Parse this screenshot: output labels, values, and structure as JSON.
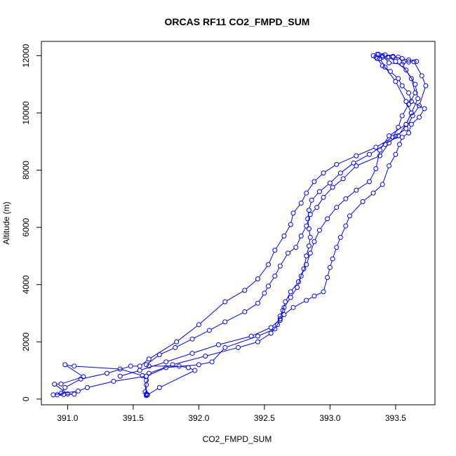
{
  "chart_data": {
    "type": "line",
    "title": "ORCAS RF11 CO2_FMPD_SUM",
    "xlabel": "CO2_FMPD_SUM",
    "ylabel": "Altitude (m)",
    "xlim": [
      390.8,
      393.8
    ],
    "ylim": [
      -200,
      12500
    ],
    "x_ticks": [
      391.0,
      391.5,
      392.0,
      392.5,
      393.0,
      393.5
    ],
    "x_tick_labels": [
      "391.0",
      "391.5",
      "392.0",
      "392.5",
      "393.0",
      "393.5"
    ],
    "y_ticks": [
      0,
      2000,
      4000,
      6000,
      8000,
      10000,
      12000
    ],
    "y_tick_labels": [
      "0",
      "2000",
      "4000",
      "6000",
      "8000",
      "10000",
      "12000"
    ],
    "grid": false,
    "legend": "none",
    "marker": "open-circle",
    "color": "#0000ff",
    "series": [
      {
        "points": [
          [
            391.61,
            150
          ],
          [
            391.6,
            180
          ],
          [
            391.59,
            250
          ],
          [
            391.6,
            650
          ],
          [
            391.57,
            820
          ],
          [
            391.4,
            1050
          ],
          [
            391.05,
            1150
          ],
          [
            390.98,
            1200
          ],
          [
            391.12,
            780
          ],
          [
            390.95,
            530
          ],
          [
            390.9,
            520
          ],
          [
            391.0,
            180
          ],
          [
            391.05,
            170
          ],
          [
            390.97,
            160
          ],
          [
            390.92,
            150
          ],
          [
            390.89,
            150
          ],
          [
            391.08,
            280
          ],
          [
            391.15,
            400
          ],
          [
            391.35,
            620
          ],
          [
            391.6,
            800
          ],
          [
            391.75,
            1100
          ],
          [
            392.0,
            1200
          ],
          [
            392.1,
            1300
          ],
          [
            392.2,
            1800
          ],
          [
            392.45,
            2200
          ],
          [
            392.58,
            2450
          ],
          [
            392.62,
            2750
          ],
          [
            392.65,
            2950
          ],
          [
            392.72,
            3200
          ],
          [
            392.82,
            3450
          ],
          [
            392.88,
            3600
          ],
          [
            392.95,
            3750
          ],
          [
            392.98,
            4250
          ],
          [
            393.0,
            4600
          ],
          [
            393.02,
            4900
          ],
          [
            393.05,
            5300
          ],
          [
            393.08,
            5650
          ],
          [
            393.12,
            6050
          ],
          [
            393.15,
            6400
          ],
          [
            393.25,
            6900
          ],
          [
            393.33,
            7200
          ],
          [
            393.4,
            7500
          ],
          [
            393.45,
            8150
          ],
          [
            393.5,
            8550
          ],
          [
            393.53,
            8900
          ],
          [
            393.55,
            9150
          ],
          [
            393.6,
            9300
          ],
          [
            393.62,
            9600
          ],
          [
            393.68,
            9850
          ],
          [
            393.72,
            10150
          ],
          [
            393.62,
            10400
          ],
          [
            393.6,
            10700
          ],
          [
            393.55,
            10950
          ],
          [
            393.52,
            11200
          ],
          [
            393.46,
            11450
          ],
          [
            393.4,
            11650
          ],
          [
            393.36,
            11900
          ],
          [
            393.33,
            12000
          ],
          [
            393.37,
            12050
          ],
          [
            393.42,
            12030
          ],
          [
            393.48,
            11980
          ],
          [
            393.55,
            11900
          ],
          [
            393.6,
            11850
          ],
          [
            393.66,
            11800
          ]
        ]
      },
      {
        "points": [
          [
            393.35,
            11950
          ],
          [
            393.4,
            11950
          ],
          [
            393.44,
            11950
          ],
          [
            393.48,
            11950
          ],
          [
            393.52,
            11950
          ],
          [
            393.56,
            11780
          ],
          [
            393.6,
            11780
          ],
          [
            393.64,
            11790
          ],
          [
            393.7,
            11300
          ],
          [
            393.73,
            10950
          ],
          [
            393.68,
            10250
          ],
          [
            393.63,
            9900
          ],
          [
            393.58,
            9450
          ],
          [
            393.5,
            9180
          ],
          [
            393.45,
            8950
          ],
          [
            393.38,
            8500
          ],
          [
            393.2,
            8150
          ],
          [
            393.1,
            7700
          ],
          [
            393.02,
            7400
          ],
          [
            392.95,
            7050
          ],
          [
            392.9,
            6700
          ],
          [
            392.85,
            6450
          ],
          [
            392.82,
            6050
          ],
          [
            392.78,
            5700
          ],
          [
            392.74,
            5300
          ],
          [
            392.68,
            5100
          ],
          [
            392.62,
            4650
          ],
          [
            392.58,
            4300
          ],
          [
            392.53,
            3950
          ],
          [
            392.5,
            3700
          ],
          [
            392.45,
            3350
          ],
          [
            392.35,
            3050
          ],
          [
            392.2,
            2700
          ],
          [
            392.08,
            2400
          ],
          [
            391.95,
            2100
          ],
          [
            391.82,
            1800
          ],
          [
            391.7,
            1550
          ],
          [
            391.6,
            1200
          ],
          [
            391.62,
            1150
          ],
          [
            391.85,
            1150
          ],
          [
            391.92,
            1100
          ],
          [
            391.97,
            1000
          ],
          [
            391.7,
            400
          ],
          [
            391.6,
            120
          ]
        ]
      },
      {
        "points": [
          [
            393.4,
            12000
          ],
          [
            393.45,
            11750
          ],
          [
            393.55,
            11700
          ],
          [
            393.62,
            11200
          ],
          [
            393.65,
            10700
          ],
          [
            393.6,
            10300
          ],
          [
            393.55,
            9900
          ],
          [
            393.52,
            9500
          ],
          [
            393.48,
            9150
          ],
          [
            393.35,
            8800
          ],
          [
            393.2,
            8500
          ],
          [
            393.05,
            8200
          ],
          [
            392.95,
            7900
          ],
          [
            392.88,
            7600
          ],
          [
            392.82,
            7200
          ],
          [
            392.78,
            6850
          ],
          [
            392.72,
            6500
          ],
          [
            392.7,
            6100
          ],
          [
            392.65,
            5700
          ],
          [
            392.58,
            5200
          ],
          [
            392.53,
            4700
          ],
          [
            392.45,
            4200
          ],
          [
            392.35,
            3800
          ],
          [
            392.2,
            3400
          ],
          [
            392.0,
            2600
          ],
          [
            391.83,
            2000
          ],
          [
            391.62,
            1400
          ],
          [
            391.55,
            1150
          ],
          [
            391.48,
            1150
          ],
          [
            391.3,
            900
          ],
          [
            391.1,
            700
          ],
          [
            390.98,
            400
          ],
          [
            390.95,
            200
          ]
        ]
      },
      {
        "points": [
          [
            393.36,
            12050
          ],
          [
            393.38,
            11900
          ],
          [
            393.42,
            11600
          ],
          [
            393.5,
            11100
          ],
          [
            393.58,
            10400
          ],
          [
            393.62,
            10000
          ],
          [
            393.58,
            9600
          ],
          [
            393.45,
            9200
          ],
          [
            393.38,
            8700
          ],
          [
            393.35,
            8050
          ],
          [
            393.3,
            7600
          ],
          [
            393.2,
            7300
          ],
          [
            393.12,
            7000
          ],
          [
            393.05,
            6700
          ],
          [
            392.98,
            6300
          ],
          [
            392.92,
            5900
          ],
          [
            392.88,
            5500
          ],
          [
            392.85,
            5100
          ],
          [
            392.82,
            4700
          ],
          [
            392.78,
            4300
          ],
          [
            392.75,
            3900
          ],
          [
            392.7,
            3550
          ],
          [
            392.65,
            3200
          ],
          [
            392.62,
            2900
          ],
          [
            392.6,
            2600
          ],
          [
            392.55,
            2300
          ],
          [
            392.45,
            2000
          ],
          [
            392.3,
            1800
          ],
          [
            392.05,
            1500
          ],
          [
            391.8,
            1200
          ],
          [
            391.62,
            900
          ],
          [
            391.6,
            500
          ],
          [
            391.6,
            150
          ]
        ]
      },
      {
        "points": [
          [
            393.45,
            11950
          ],
          [
            393.5,
            11800
          ],
          [
            393.58,
            11500
          ],
          [
            393.65,
            11000
          ],
          [
            393.67,
            10500
          ],
          [
            393.62,
            10000
          ],
          [
            393.58,
            9600
          ],
          [
            393.52,
            9200
          ],
          [
            393.42,
            8900
          ],
          [
            393.3,
            8550
          ],
          [
            393.18,
            8250
          ],
          [
            393.08,
            7900
          ],
          [
            393.0,
            7550
          ],
          [
            392.92,
            7250
          ],
          [
            392.86,
            6950
          ],
          [
            392.84,
            6600
          ],
          [
            392.83,
            6300
          ],
          [
            392.84,
            5950
          ],
          [
            392.85,
            5650
          ],
          [
            392.84,
            5350
          ],
          [
            392.82,
            5000
          ],
          [
            392.8,
            4550
          ],
          [
            392.76,
            4100
          ],
          [
            392.7,
            3750
          ],
          [
            392.66,
            3400
          ],
          [
            392.64,
            3100
          ],
          [
            392.62,
            2800
          ],
          [
            392.55,
            2500
          ],
          [
            392.4,
            2200
          ],
          [
            392.15,
            1900
          ],
          [
            391.95,
            1600
          ],
          [
            391.75,
            1300
          ],
          [
            391.55,
            1000
          ],
          [
            391.4,
            800
          ]
        ]
      }
    ]
  }
}
